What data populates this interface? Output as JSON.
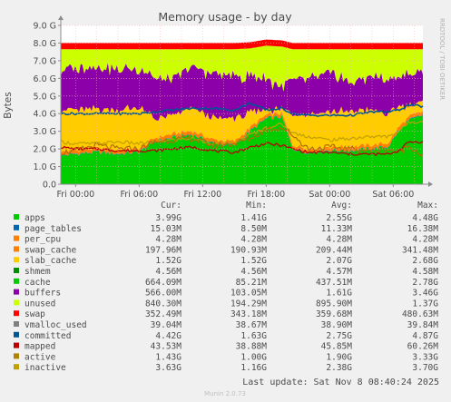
{
  "chart_data": {
    "type": "area",
    "title": "Memory usage - by day",
    "ylabel": "Bytes",
    "watermark": "RRDTOOL / TOBI OETIKER",
    "y_ticks": [
      "0.0",
      "1.0 G",
      "2.0 G",
      "3.0 G",
      "4.0 G",
      "5.0 G",
      "6.0 G",
      "7.0 G",
      "8.0 G",
      "9.0 G"
    ],
    "ylim": [
      0,
      9.0
    ],
    "y_unit": "GB",
    "x_ticks": [
      {
        "label": "Fri 00:00",
        "h": 0
      },
      {
        "label": "Fri 06:00",
        "h": 6
      },
      {
        "label": "Fri 12:00",
        "h": 12
      },
      {
        "label": "Fri 18:00",
        "h": 18
      },
      {
        "label": "Sat 00:00",
        "h": 24
      },
      {
        "label": "Sat 06:00",
        "h": 30
      }
    ],
    "xlim_hours": [
      -1.4,
      32.8
    ],
    "grid": true,
    "colors": {
      "bg": "#f0f0f0",
      "plot_bg": "#ffffff",
      "grid": "#f2b0b0",
      "axis": "#8c8c8c",
      "text": "#4c4c4c",
      "swap": "#ff0000",
      "unused": "#ccff00",
      "buffers": "#8b00a8",
      "cache": "#ffcc00",
      "slab_cache": "#ff8000",
      "swap_cache": "#ff8000",
      "apps": "#00cc00",
      "committed": "#005596",
      "mapped": "#bb0000",
      "inactive": "#c0a000",
      "active": "#b07000",
      "vmalloc_used": "#888888"
    },
    "series": [
      {
        "name": "apps",
        "cur": "3.99G",
        "min": "1.41G",
        "avg": "2.55G",
        "max": "4.48G",
        "color": "#00cc00"
      },
      {
        "name": "page_tables",
        "cur": "15.03M",
        "min": "8.50M",
        "avg": "11.33M",
        "max": "16.38M",
        "color": "#0066b3"
      },
      {
        "name": "per_cpu",
        "cur": "4.28M",
        "min": "4.28M",
        "avg": "4.28M",
        "max": "4.28M",
        "color": "#ff8000"
      },
      {
        "name": "swap_cache",
        "cur": "197.96M",
        "min": "190.93M",
        "avg": "209.44M",
        "max": "341.48M",
        "color": "#ff8000"
      },
      {
        "name": "slab_cache",
        "cur": "1.52G",
        "min": "1.52G",
        "avg": "2.07G",
        "max": "2.68G",
        "color": "#ffcc00"
      },
      {
        "name": "shmem",
        "cur": "4.56M",
        "min": "4.56M",
        "avg": "4.57M",
        "max": "4.58M",
        "color": "#008f00"
      },
      {
        "name": "cache",
        "cur": "664.09M",
        "min": "85.21M",
        "avg": "437.51M",
        "max": "2.78G",
        "color": "#00cc00"
      },
      {
        "name": "buffers",
        "cur": "566.00M",
        "min": "103.05M",
        "avg": "1.61G",
        "max": "3.46G",
        "color": "#8b00a8"
      },
      {
        "name": "unused",
        "cur": "840.30M",
        "min": "194.29M",
        "avg": "895.90M",
        "max": "1.37G",
        "color": "#ccff00"
      },
      {
        "name": "swap",
        "cur": "352.49M",
        "min": "343.18M",
        "avg": "359.68M",
        "max": "480.63M",
        "color": "#ff0000"
      },
      {
        "name": "vmalloc_used",
        "cur": "39.04M",
        "min": "38.67M",
        "avg": "38.90M",
        "max": "39.84M",
        "color": "#808080"
      },
      {
        "name": "committed",
        "cur": "4.42G",
        "min": "1.63G",
        "avg": "2.75G",
        "max": "4.87G",
        "color": "#00558f"
      },
      {
        "name": "mapped",
        "cur": "43.53M",
        "min": "38.88M",
        "avg": "45.85M",
        "max": "60.26M",
        "color": "#bb0000"
      },
      {
        "name": "active",
        "cur": "1.43G",
        "min": "1.00G",
        "avg": "1.90G",
        "max": "3.33G",
        "color": "#b08000"
      },
      {
        "name": "inactive",
        "cur": "3.63G",
        "min": "1.16G",
        "avg": "2.38G",
        "max": "3.70G",
        "color": "#c0a000"
      }
    ],
    "stack_profile": {
      "hours": [
        -1.4,
        0,
        2,
        4,
        6,
        7.5,
        9,
        11,
        13,
        15,
        16.5,
        18,
        19.5,
        20.5,
        22,
        24,
        26,
        28,
        29.5,
        30.5,
        31.5,
        32.8
      ],
      "apps": [
        1.6,
        1.7,
        1.8,
        1.7,
        1.8,
        2.4,
        2.6,
        2.8,
        2.3,
        2.2,
        3.0,
        3.7,
        3.8,
        2.0,
        1.8,
        1.9,
        1.9,
        2.0,
        2.1,
        3.0,
        3.6,
        3.9
      ],
      "slab": [
        2.4,
        2.3,
        2.2,
        2.3,
        2.3,
        1.1,
        1.0,
        1.3,
        1.2,
        1.3,
        0.8,
        0.3,
        0.2,
        1.8,
        2.0,
        2.0,
        2.0,
        2.0,
        1.6,
        1.2,
        0.6,
        0.5
      ],
      "buffers": [
        2.3,
        2.3,
        2.4,
        2.3,
        2.2,
        2.3,
        2.0,
        2.3,
        2.5,
        2.4,
        2.0,
        1.8,
        1.2,
        2.0,
        2.0,
        2.2,
        1.6,
        1.9,
        2.0,
        1.6,
        1.8,
        1.7
      ],
      "committed": [
        4.0,
        4.0,
        4.0,
        4.0,
        4.0,
        4.1,
        4.2,
        4.3,
        4.3,
        4.2,
        4.6,
        4.2,
        4.3,
        4.0,
        3.9,
        3.9,
        3.9,
        4.1,
        4.1,
        4.2,
        4.5,
        4.4
      ],
      "active": [
        1.8,
        1.9,
        2.2,
        2.0,
        2.0,
        2.4,
        2.5,
        2.6,
        2.2,
        2.3,
        2.6,
        3.1,
        3.2,
        2.8,
        2.0,
        2.1,
        2.0,
        1.9,
        2.0,
        1.8,
        2.2,
        1.6
      ],
      "inactive": [
        2.4,
        2.3,
        2.3,
        2.4,
        2.3,
        2.4,
        2.5,
        2.6,
        2.3,
        2.3,
        2.8,
        3.2,
        3.4,
        2.9,
        2.7,
        2.5,
        2.6,
        2.7,
        2.7,
        3.0,
        3.5,
        3.6
      ],
      "mapped": [
        2.1,
        2.0,
        2.0,
        1.9,
        1.9,
        1.9,
        2.0,
        2.1,
        1.9,
        1.8,
        2.1,
        2.3,
        2.2,
        2.0,
        1.8,
        1.8,
        1.7,
        1.7,
        1.7,
        1.9,
        2.4,
        2.4
      ],
      "swap_top": [
        8.0,
        8.0,
        8.0,
        8.0,
        8.0,
        8.0,
        8.0,
        8.0,
        8.0,
        8.0,
        8.05,
        8.2,
        8.15,
        8.0,
        8.0,
        8.0,
        8.0,
        8.0,
        8.0,
        8.0,
        8.0,
        8.0
      ]
    }
  },
  "legend": {
    "headers": {
      "cur": "Cur:",
      "min": "Min:",
      "avg": "Avg:",
      "max": "Max:"
    }
  },
  "footer": {
    "last_update": "Last update: Sat Nov  8 08:40:24 2025",
    "version": "Munin 2.0.73"
  }
}
